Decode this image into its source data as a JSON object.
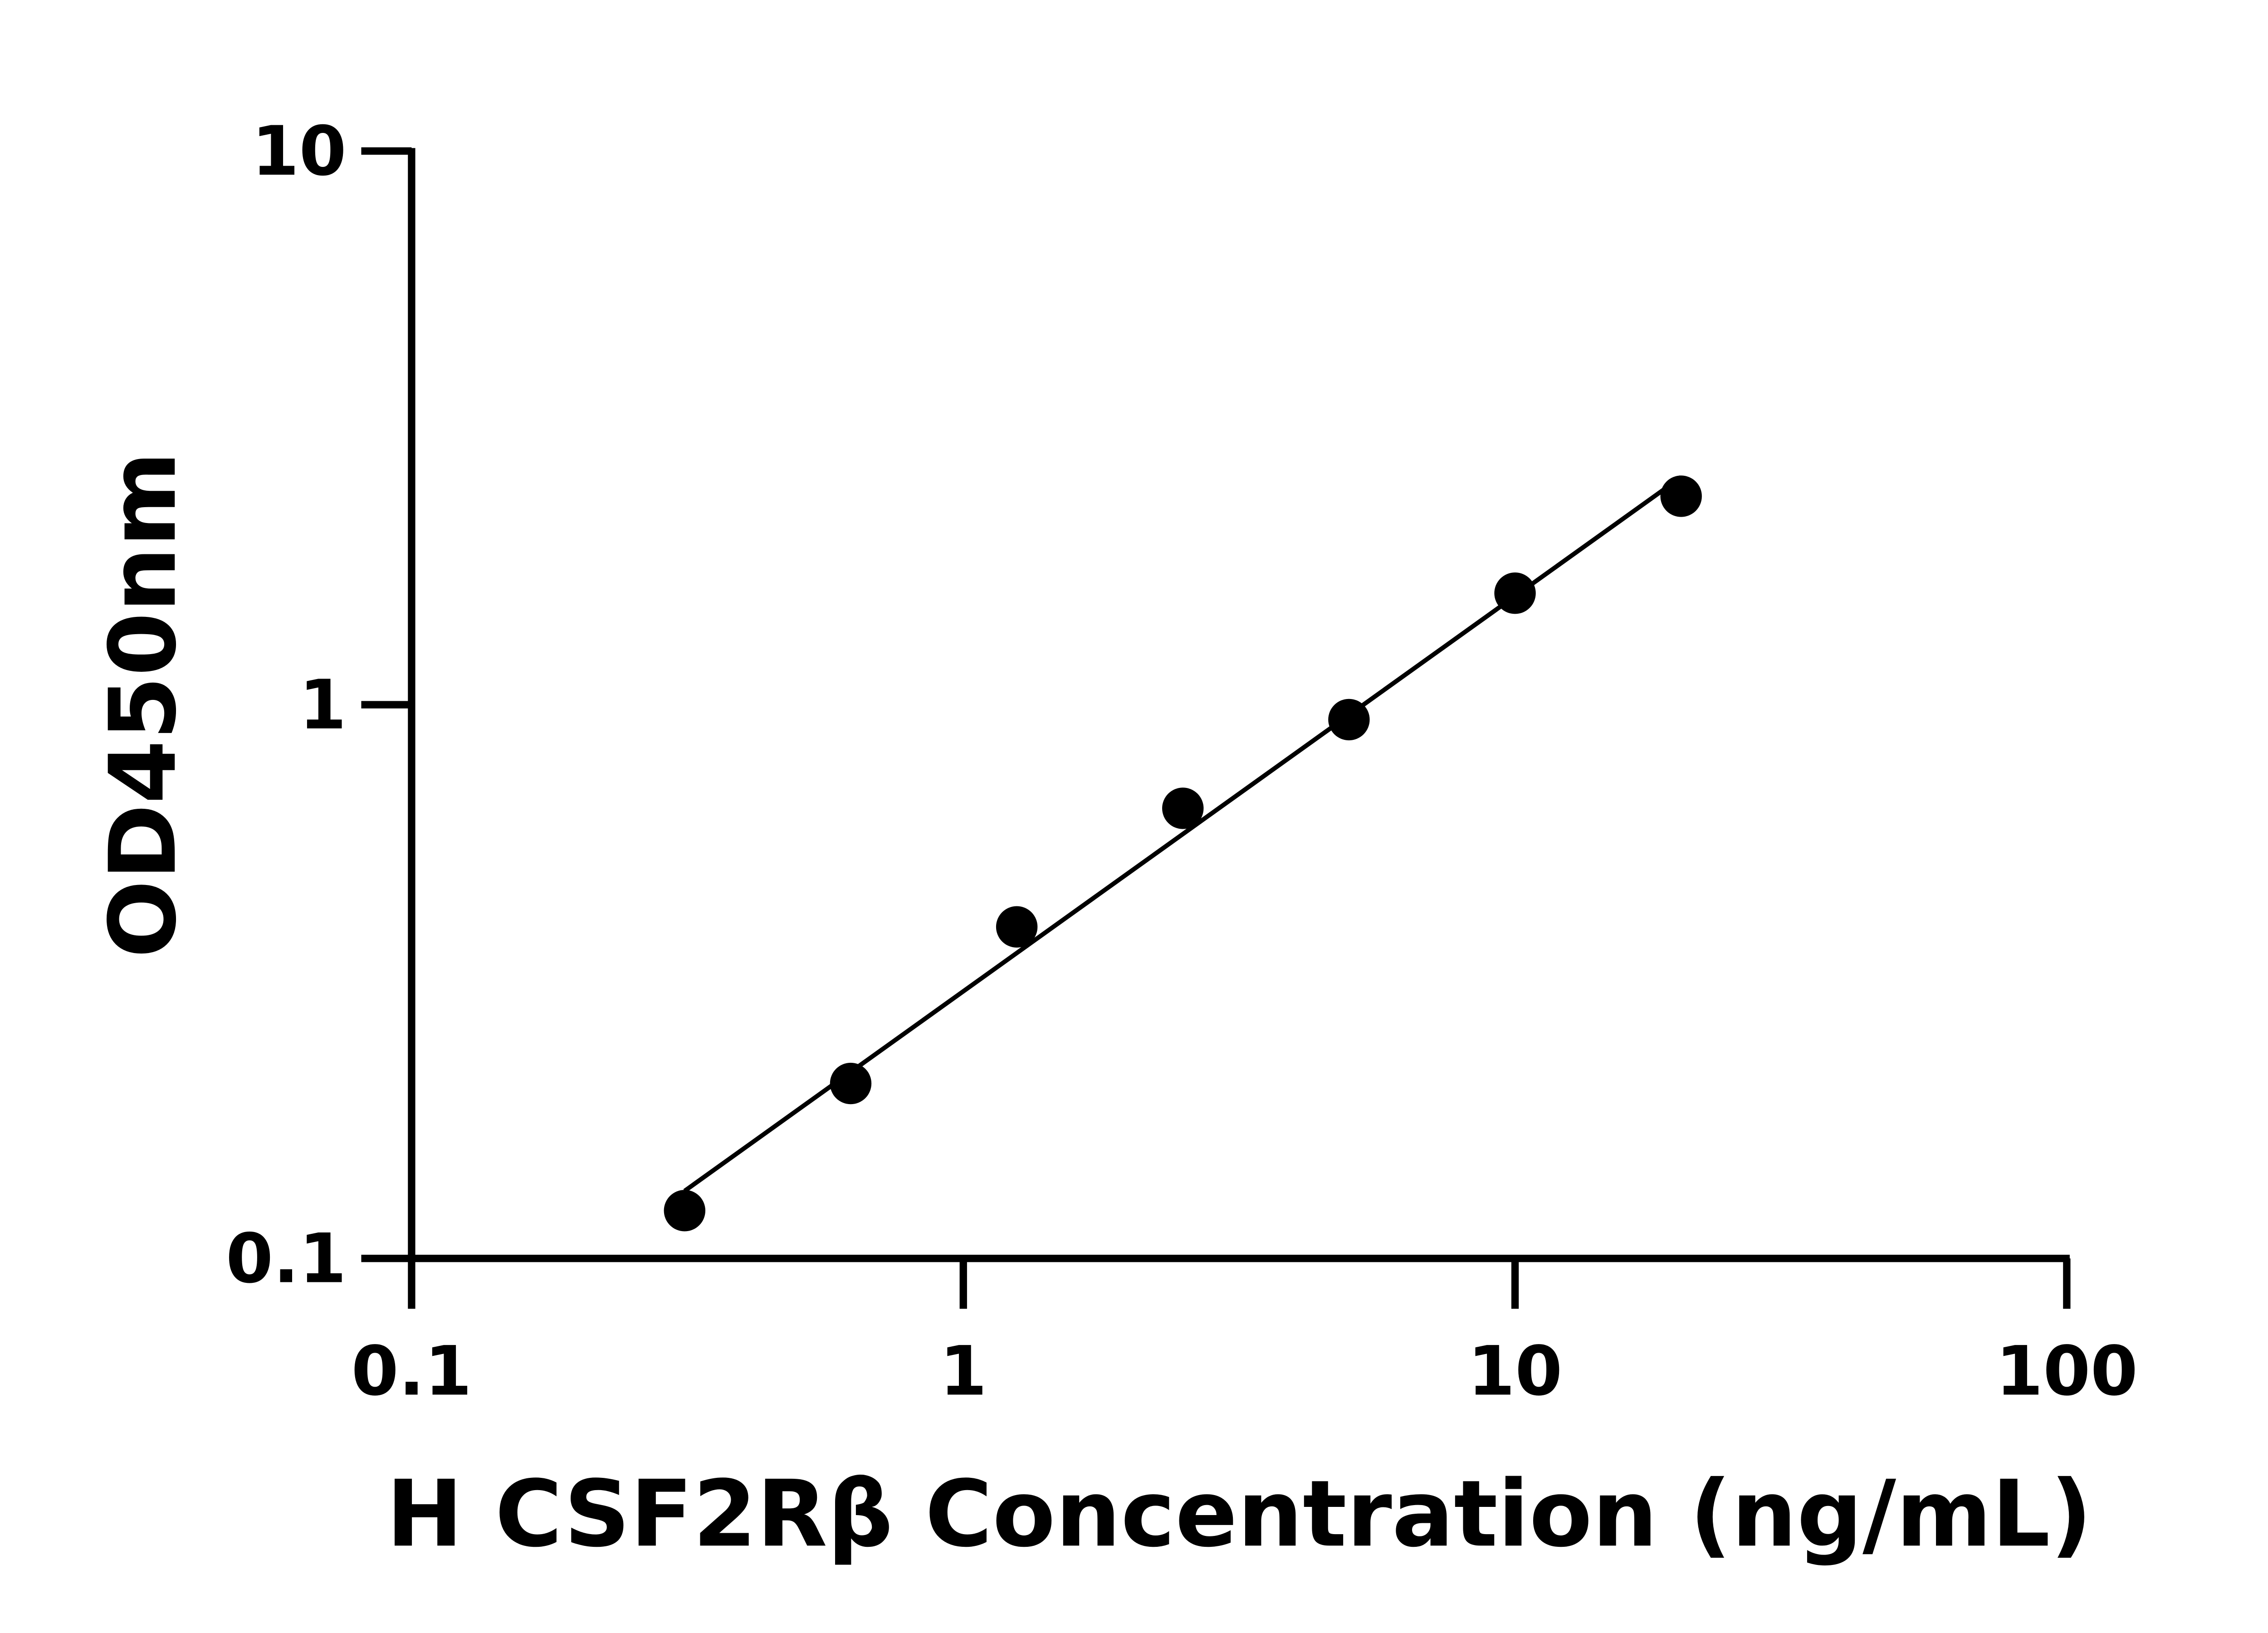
{
  "chart_data": {
    "type": "scatter",
    "title": "",
    "xlabel": "H CSF2Rβ Concentration (ng/mL)",
    "ylabel": "OD450nm",
    "x_scale": "log",
    "y_scale": "log",
    "xlim": [
      0.1,
      100
    ],
    "ylim": [
      0.1,
      10
    ],
    "x_ticks": [
      "0.1",
      "1",
      "10",
      "100"
    ],
    "y_ticks": [
      "0.1",
      "1",
      "10"
    ],
    "grid": false,
    "color": "#000000",
    "series": [
      {
        "x": [
          0.3125,
          0.625,
          1.25,
          2.5,
          5,
          10,
          20
        ],
        "y": [
          0.122,
          0.207,
          0.397,
          0.65,
          0.94,
          1.59,
          2.38
        ],
        "fit": "line"
      }
    ]
  }
}
